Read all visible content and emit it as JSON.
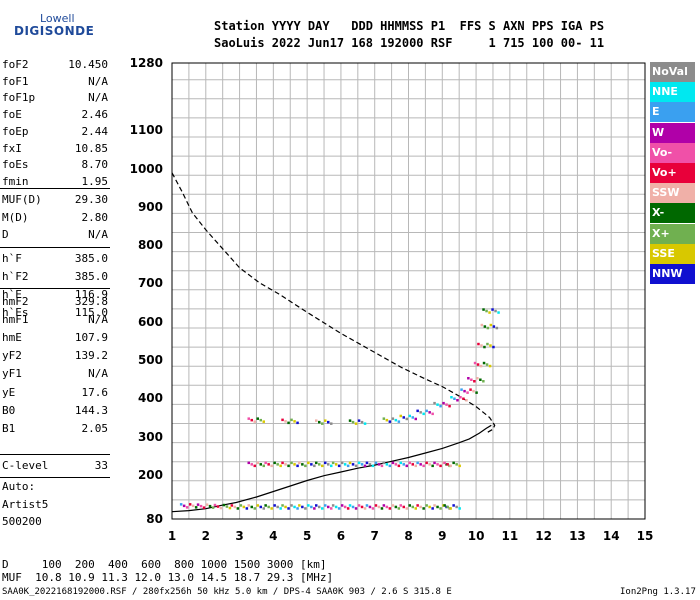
{
  "logo": {
    "line1": "Lowell",
    "line2": "DIGISONDE"
  },
  "header": {
    "line1": "Station YYYY DAY   DDD HHMMSS P1  FFS S AXN PPS IGA PS",
    "line2": "SaoLuis 2022 Jun17 168 192000 RSF     1 715 100 00- 11"
  },
  "params_group1": [
    {
      "name": "foF2",
      "value": "10.450"
    },
    {
      "name": "foF1",
      "value": "N/A"
    },
    {
      "name": "foF1p",
      "value": "N/A"
    },
    {
      "name": "foE",
      "value": "2.46"
    },
    {
      "name": "foEp",
      "value": "2.44"
    },
    {
      "name": "fxI",
      "value": "10.85"
    },
    {
      "name": "foEs",
      "value": "8.70"
    },
    {
      "name": "fmin",
      "value": "1.95"
    }
  ],
  "params_group2": [
    {
      "name": "MUF(D)",
      "value": "29.30"
    },
    {
      "name": "M(D)",
      "value": "2.80"
    },
    {
      "name": "D",
      "value": "N/A"
    }
  ],
  "params_group3": [
    {
      "name": "h`F",
      "value": "385.0"
    },
    {
      "name": "h`F2",
      "value": "385.0"
    },
    {
      "name": "h`E",
      "value": "116.9"
    },
    {
      "name": "h`Es",
      "value": "115.0"
    }
  ],
  "params_group4": [
    {
      "name": "hmF2",
      "value": "329.8"
    },
    {
      "name": "hmF1",
      "value": "N/A"
    },
    {
      "name": "hmE",
      "value": "107.9"
    },
    {
      "name": "yF2",
      "value": "139.2"
    },
    {
      "name": "yF1",
      "value": "N/A"
    },
    {
      "name": "yE",
      "value": "17.6"
    },
    {
      "name": "B0",
      "value": "144.3"
    },
    {
      "name": "B1",
      "value": "2.05"
    }
  ],
  "c_level": {
    "name": "C-level",
    "value": "33"
  },
  "auto": {
    "line1": "Auto:",
    "line2": "Artist5",
    "line3": "500200"
  },
  "legend": [
    {
      "label": "NoVal",
      "color": "#8c8c8c"
    },
    {
      "label": "NNE",
      "color": "#00e8f0"
    },
    {
      "label": "E",
      "color": "#3aa0f0"
    },
    {
      "label": "W",
      "color": "#b000a8"
    },
    {
      "label": "Vo-",
      "color": "#f050a8"
    },
    {
      "label": "Vo+",
      "color": "#e8003a"
    },
    {
      "label": "SSW",
      "color": "#f0b0a8"
    },
    {
      "label": "X-",
      "color": "#006800"
    },
    {
      "label": "X+",
      "color": "#70b050"
    },
    {
      "label": "SSE",
      "color": "#d8c800"
    },
    {
      "label": "NNW",
      "color": "#1010d0"
    }
  ],
  "footer": {
    "d_line": "D     100  200  400  600  800 1000 1500 3000 [km]",
    "muf_line": "MUF  10.8 10.9 11.3 12.0 13.0 14.5 18.7 29.3 [MHz]",
    "file_line": "SAA0K_2022168192000.RSF / 280fx256h 50 kHz 5.0 km / DPS-4 SAA0K 903 / 2.6 S 315.8 E",
    "version": "Ion2Png 1.3.17"
  },
  "chart_data": {
    "type": "scatter",
    "x_ticks": [
      "1",
      "2",
      "3",
      "4",
      "5",
      "6",
      "7",
      "8",
      "9",
      "10",
      "11",
      "12",
      "13",
      "14",
      "15"
    ],
    "y_ticks": [
      "80",
      "200",
      "300",
      "400",
      "500",
      "600",
      "700",
      "800",
      "900",
      "1000",
      "1100",
      "1280"
    ],
    "xlim": [
      1,
      15
    ],
    "ylim": [
      80,
      1280
    ],
    "grid": true,
    "legend_placement": "right",
    "series": [
      {
        "name": "O-trace profile",
        "style": "solid",
        "x": [
          1.0,
          1.5,
          2.0,
          2.5,
          2.9,
          3.5,
          4.0,
          4.5,
          5.0,
          5.5,
          6.0,
          6.5,
          7.0,
          7.5,
          8.0,
          8.5,
          9.0,
          9.5,
          9.8,
          10.1,
          10.3,
          10.45
        ],
        "y": [
          100,
          103,
          108,
          118,
          125,
          140,
          155,
          170,
          185,
          198,
          208,
          218,
          226,
          236,
          246,
          258,
          270,
          285,
          295,
          310,
          322,
          330
        ]
      },
      {
        "name": "F2 virtual height",
        "style": "dashed",
        "x": [
          1.0,
          1.3,
          1.6,
          2.0,
          2.5,
          3.0,
          3.6,
          4.2,
          5.0,
          6.0,
          7.0,
          7.8,
          8.5,
          9.0,
          9.5,
          10.0,
          10.4,
          10.55,
          10.5,
          10.3
        ],
        "y": [
          990,
          940,
          885,
          840,
          790,
          740,
          700,
          670,
          625,
          570,
          520,
          480,
          450,
          430,
          405,
          378,
          350,
          330,
          320,
          310
        ]
      },
      {
        "name": "Es-low trace",
        "style": "points",
        "x": [
          1.5,
          2.0,
          2.5,
          3.0,
          3.5,
          4.0,
          4.5,
          5.0,
          5.5,
          6.0,
          6.5,
          7.0,
          7.5,
          8.0,
          8.5,
          9.0,
          9.3
        ],
        "y": [
          118,
          117,
          116,
          115,
          115,
          115,
          115,
          115,
          115,
          115,
          115,
          115,
          115,
          115,
          115,
          115,
          115
        ]
      },
      {
        "name": "Es-mid trace",
        "style": "points",
        "x": [
          3.5,
          4.0,
          4.5,
          5.0,
          5.5,
          6.0,
          6.5,
          7.0,
          7.5,
          8.0,
          8.5,
          9.0,
          9.3
        ],
        "y": [
          230,
          230,
          230,
          230,
          230,
          230,
          230,
          230,
          230,
          230,
          230,
          230,
          230
        ]
      },
      {
        "name": "F-trace",
        "style": "points",
        "x": [
          3.5,
          4.5,
          5.5,
          6.5,
          7.5,
          8.0,
          8.5,
          9.0,
          9.5,
          9.8,
          10.0,
          10.2,
          10.3,
          10.4,
          10.45
        ],
        "y": [
          345,
          342,
          340,
          340,
          345,
          352,
          365,
          385,
          400,
          420,
          450,
          490,
          540,
          590,
          630
        ]
      }
    ]
  }
}
